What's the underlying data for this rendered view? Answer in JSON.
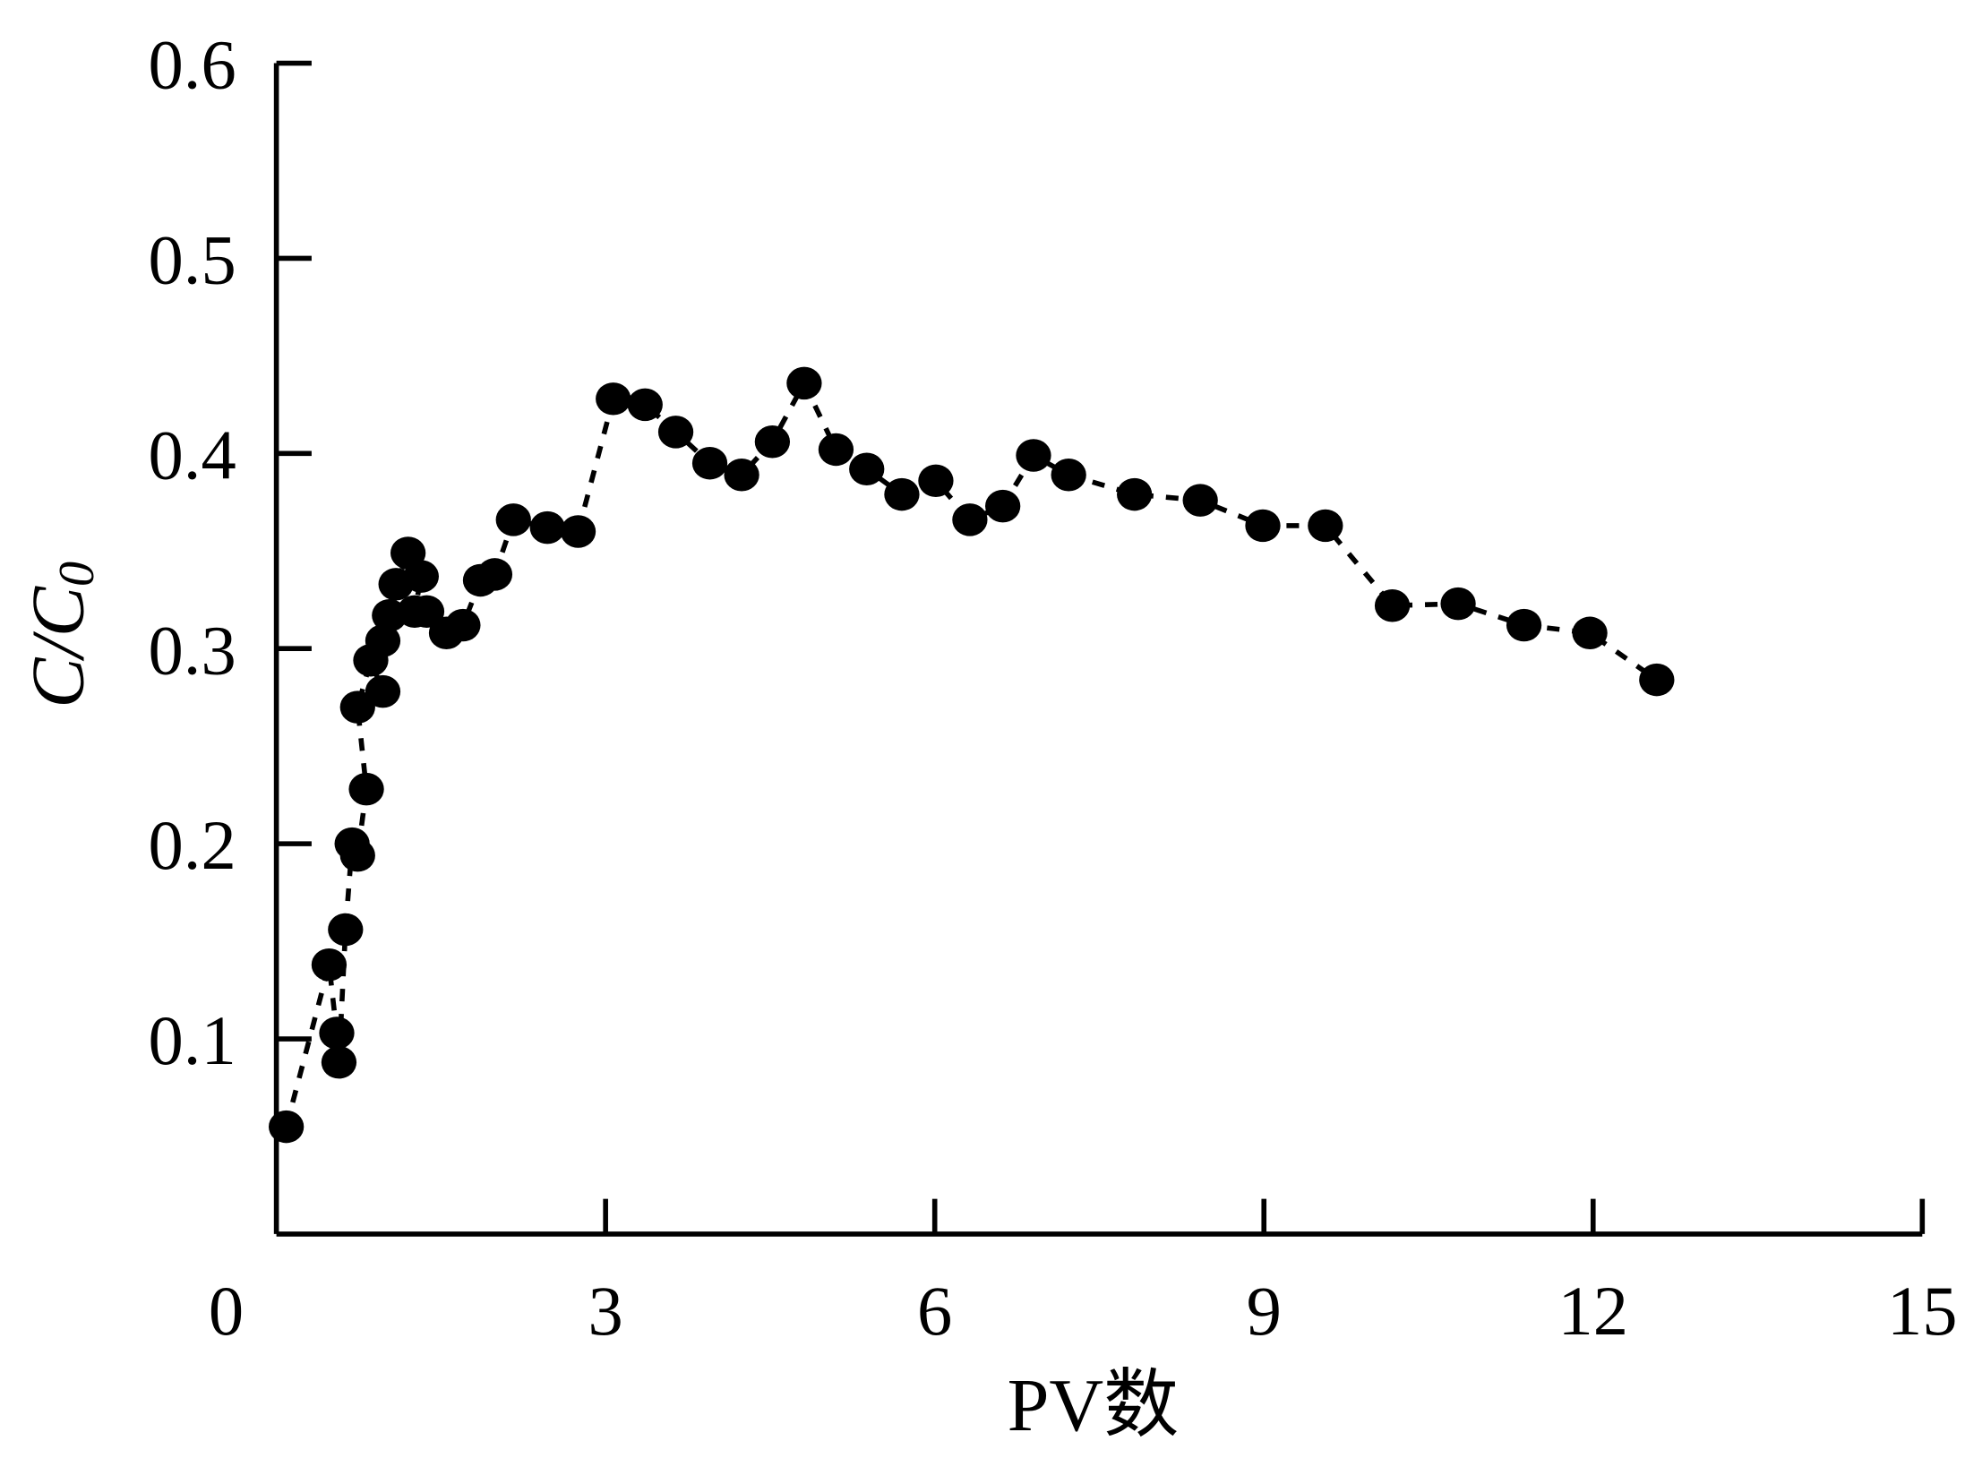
{
  "chart_data": {
    "type": "scatter",
    "xlabel": "PV数",
    "ylabel": {
      "main": "C/C",
      "subscript": "0"
    },
    "xlim": [
      0,
      15
    ],
    "ylim": [
      0,
      0.6
    ],
    "xticks": [
      0,
      3,
      6,
      9,
      12,
      15
    ],
    "yticks": [
      0.1,
      0.2,
      0.3,
      0.4,
      0.5,
      0.6
    ],
    "ytick_labels": [
      "0.1",
      "0.2",
      "0.3",
      "0.4",
      "0.5",
      "0.6"
    ],
    "xtick_labels": [
      "0",
      "3",
      "6",
      "9",
      "12",
      "15"
    ],
    "grid": false,
    "connected_by": "dashed line",
    "marker_color": "#000000",
    "points": [
      [
        0.09,
        0.055
      ],
      [
        0.48,
        0.138
      ],
      [
        0.55,
        0.103
      ],
      [
        0.57,
        0.088
      ],
      [
        0.63,
        0.156
      ],
      [
        0.69,
        0.2
      ],
      [
        0.74,
        0.194
      ],
      [
        0.82,
        0.228
      ],
      [
        0.74,
        0.27
      ],
      [
        0.86,
        0.294
      ],
      [
        0.97,
        0.278
      ],
      [
        0.97,
        0.304
      ],
      [
        1.03,
        0.317
      ],
      [
        1.09,
        0.333
      ],
      [
        1.2,
        0.349
      ],
      [
        1.32,
        0.337
      ],
      [
        1.26,
        0.319
      ],
      [
        1.37,
        0.319
      ],
      [
        1.55,
        0.308
      ],
      [
        1.7,
        0.312
      ],
      [
        1.86,
        0.335
      ],
      [
        1.99,
        0.338
      ],
      [
        2.16,
        0.366
      ],
      [
        2.47,
        0.362
      ],
      [
        2.75,
        0.36
      ],
      [
        3.07,
        0.428
      ],
      [
        3.36,
        0.425
      ],
      [
        3.64,
        0.411
      ],
      [
        3.95,
        0.395
      ],
      [
        4.24,
        0.389
      ],
      [
        4.52,
        0.406
      ],
      [
        4.81,
        0.436
      ],
      [
        5.1,
        0.402
      ],
      [
        5.38,
        0.392
      ],
      [
        5.7,
        0.379
      ],
      [
        6.01,
        0.386
      ],
      [
        6.32,
        0.366
      ],
      [
        6.62,
        0.373
      ],
      [
        6.9,
        0.399
      ],
      [
        7.22,
        0.389
      ],
      [
        7.82,
        0.379
      ],
      [
        8.42,
        0.376
      ],
      [
        8.99,
        0.363
      ],
      [
        9.56,
        0.363
      ],
      [
        10.17,
        0.322
      ],
      [
        10.77,
        0.323
      ],
      [
        11.37,
        0.312
      ],
      [
        11.97,
        0.308
      ],
      [
        12.58,
        0.284
      ]
    ]
  }
}
